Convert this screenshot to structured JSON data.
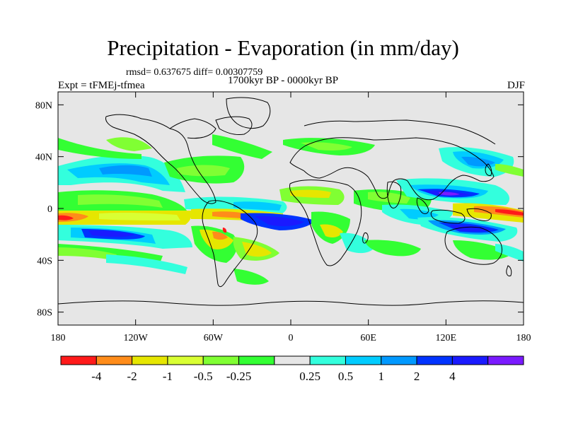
{
  "title": "Precipitation - Evaporation (in mm/day)",
  "stats": "rmsd= 0.637675  diff= 0.00307759",
  "experiment": "Expt = tFMEj-tfmea",
  "period": "1700kyr BP - 0000kyr BP",
  "season": "DJF",
  "map": {
    "lon_range": [
      -180,
      180
    ],
    "lat_range": [
      -90,
      90
    ],
    "background_color": "#e6e6e6",
    "coastline_color": "#000000",
    "lat_ticks": [
      {
        "value": 80,
        "label": "80N"
      },
      {
        "value": 40,
        "label": "40N"
      },
      {
        "value": 0,
        "label": "0"
      },
      {
        "value": -40,
        "label": "40S"
      },
      {
        "value": -80,
        "label": "80S"
      }
    ],
    "lon_ticks": [
      {
        "value": -180,
        "label": "180"
      },
      {
        "value": -120,
        "label": "120W"
      },
      {
        "value": -60,
        "label": "60W"
      },
      {
        "value": 0,
        "label": "0"
      },
      {
        "value": 60,
        "label": "60E"
      },
      {
        "value": 120,
        "label": "120E"
      },
      {
        "value": 180,
        "label": "180"
      }
    ]
  },
  "colorbar": {
    "colors": [
      "#ff1a1a",
      "#ff8c1a",
      "#e6e600",
      "#d9ff33",
      "#80ff33",
      "#33ff33",
      "#e6e6e6",
      "#33ffdd",
      "#00ccff",
      "#0099ff",
      "#0033ff",
      "#1a1aff",
      "#7a1aff"
    ],
    "labels": [
      "-4",
      "-2",
      "-1",
      "-0.5",
      "-0.25",
      "0.25",
      "0.5",
      "1",
      "2",
      "4"
    ]
  }
}
